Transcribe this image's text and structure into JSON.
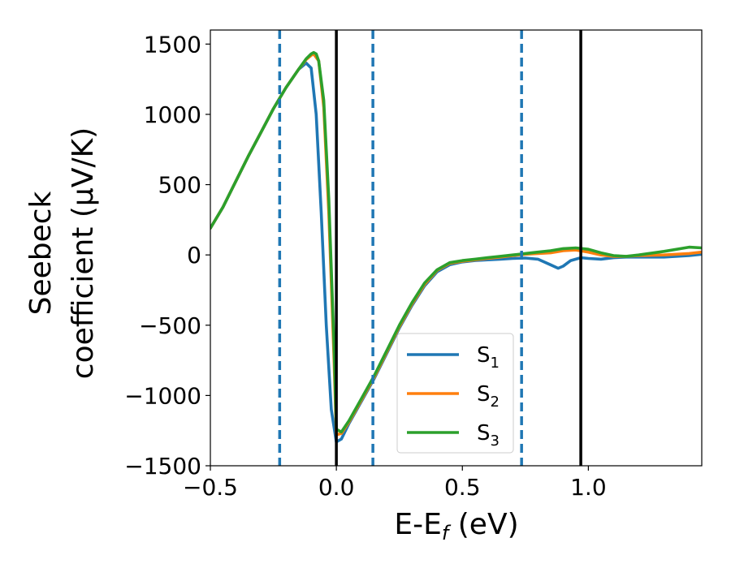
{
  "chart_data": {
    "type": "line",
    "xlabel": "E-E",
    "xlabel_sub": "f",
    "xlabel_unit": " (eV)",
    "ylabel_line1": "Seebeck",
    "ylabel_line2": "coefficient  (μV/K)",
    "xlim": [
      -0.5,
      1.45
    ],
    "ylim": [
      -1500,
      1600
    ],
    "xticks": [
      -0.5,
      0.0,
      0.5,
      1.0
    ],
    "xtick_labels": [
      "−0.5",
      "0.0",
      "0.5",
      "1.0"
    ],
    "yticks": [
      -1500,
      -1000,
      -500,
      0,
      500,
      1000,
      1500
    ],
    "ytick_labels": [
      "−1500",
      "−1000",
      "−500",
      "0",
      "500",
      "1000",
      "1500"
    ],
    "legend_position": "lower-center",
    "vertical_lines_solid": [
      0.0,
      0.97
    ],
    "vertical_lines_dashed": [
      -0.225,
      0.145,
      0.735
    ],
    "colors": {
      "solid_line": "#000000",
      "dashed_line": "#1f77b4"
    },
    "series": [
      {
        "name": "S",
        "subscript": "1",
        "color": "#1f77b4",
        "x": [
          -0.5,
          -0.45,
          -0.4,
          -0.35,
          -0.3,
          -0.25,
          -0.2,
          -0.15,
          -0.12,
          -0.1,
          -0.08,
          -0.06,
          -0.04,
          -0.02,
          0.0,
          0.02,
          0.05,
          0.1,
          0.15,
          0.2,
          0.25,
          0.3,
          0.35,
          0.4,
          0.45,
          0.5,
          0.55,
          0.6,
          0.65,
          0.7,
          0.75,
          0.8,
          0.85,
          0.88,
          0.9,
          0.93,
          0.97,
          1.0,
          1.05,
          1.1,
          1.15,
          1.2,
          1.3,
          1.4,
          1.45
        ],
        "y": [
          190,
          340,
          520,
          700,
          870,
          1040,
          1190,
          1320,
          1365,
          1330,
          1000,
          300,
          -500,
          -1100,
          -1330,
          -1310,
          -1200,
          -1040,
          -880,
          -700,
          -520,
          -360,
          -220,
          -120,
          -70,
          -50,
          -40,
          -35,
          -30,
          -25,
          -22,
          -30,
          -70,
          -95,
          -80,
          -40,
          -20,
          -25,
          -30,
          -20,
          -15,
          -15,
          -15,
          -5,
          5
        ]
      },
      {
        "name": "S",
        "subscript": "2",
        "color": "#ff7f0e",
        "x": [
          -0.5,
          -0.45,
          -0.4,
          -0.35,
          -0.3,
          -0.25,
          -0.2,
          -0.15,
          -0.12,
          -0.1,
          -0.09,
          -0.07,
          -0.05,
          -0.03,
          -0.01,
          0.0,
          0.02,
          0.05,
          0.1,
          0.15,
          0.2,
          0.25,
          0.3,
          0.35,
          0.4,
          0.45,
          0.5,
          0.55,
          0.6,
          0.65,
          0.7,
          0.75,
          0.8,
          0.85,
          0.9,
          0.95,
          1.0,
          1.05,
          1.1,
          1.15,
          1.2,
          1.3,
          1.4,
          1.45
        ],
        "y": [
          190,
          340,
          520,
          700,
          870,
          1040,
          1190,
          1320,
          1390,
          1420,
          1430,
          1380,
          1050,
          300,
          -700,
          -1280,
          -1270,
          -1190,
          -1030,
          -870,
          -690,
          -510,
          -350,
          -210,
          -110,
          -60,
          -45,
          -35,
          -25,
          -15,
          -5,
          5,
          10,
          15,
          30,
          35,
          20,
          0,
          -10,
          -10,
          -5,
          0,
          10,
          20
        ]
      },
      {
        "name": "S",
        "subscript": "3",
        "color": "#2ca02c",
        "x": [
          -0.5,
          -0.45,
          -0.4,
          -0.35,
          -0.3,
          -0.25,
          -0.2,
          -0.15,
          -0.12,
          -0.1,
          -0.09,
          -0.08,
          -0.07,
          -0.05,
          -0.03,
          -0.01,
          0.0,
          0.02,
          0.05,
          0.1,
          0.15,
          0.2,
          0.25,
          0.3,
          0.35,
          0.4,
          0.45,
          0.5,
          0.55,
          0.6,
          0.65,
          0.7,
          0.75,
          0.8,
          0.85,
          0.9,
          0.95,
          1.0,
          1.05,
          1.1,
          1.15,
          1.2,
          1.3,
          1.4,
          1.45
        ],
        "y": [
          190,
          340,
          520,
          700,
          870,
          1040,
          1190,
          1320,
          1395,
          1430,
          1440,
          1430,
          1380,
          1100,
          400,
          -600,
          -1240,
          -1260,
          -1180,
          -1020,
          -860,
          -680,
          -500,
          -340,
          -200,
          -105,
          -55,
          -40,
          -30,
          -20,
          -10,
          0,
          10,
          20,
          30,
          45,
          50,
          40,
          15,
          -5,
          -10,
          0,
          25,
          55,
          50
        ]
      }
    ]
  }
}
